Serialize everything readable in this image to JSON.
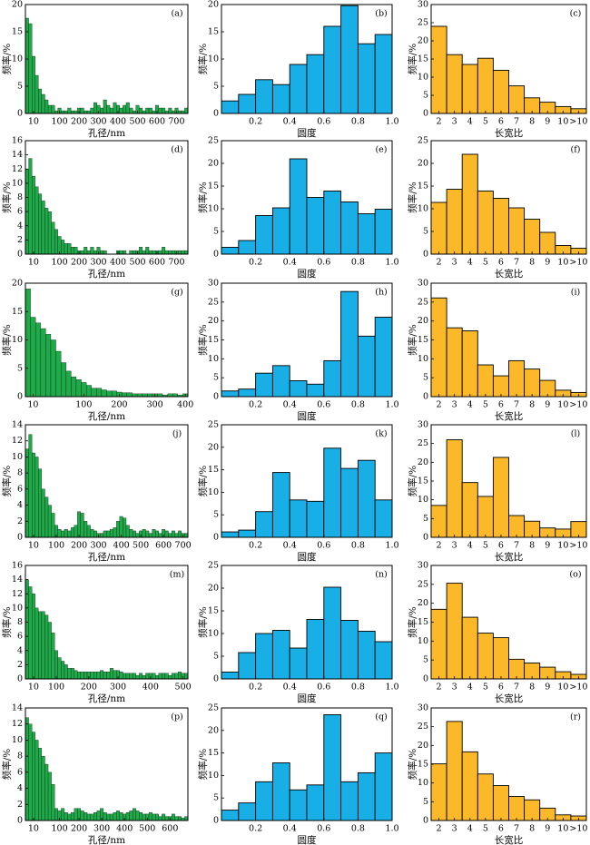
{
  "chart_data": [
    {
      "type": "bar",
      "label": "(a)",
      "xlabel": "孔径/nm",
      "ylabel": "频率/%",
      "color": "#1faa4a",
      "categories": [
        null,
        null,
        "10",
        null,
        null,
        null,
        null,
        null,
        null,
        null,
        "100",
        null,
        null,
        null,
        null,
        null,
        "200",
        null,
        null,
        null,
        null,
        null,
        "300",
        null,
        null,
        null,
        null,
        null,
        "400",
        null,
        null,
        null,
        null,
        null,
        "500",
        null,
        null,
        null,
        null,
        null,
        "600",
        null,
        null,
        null,
        null,
        null,
        "700",
        null,
        null,
        null
      ],
      "values": [
        17.5,
        16.5,
        10.5,
        7,
        4.5,
        3.5,
        2.5,
        1.5,
        1.5,
        0.5,
        1,
        0.5,
        0.5,
        1,
        0.5,
        0.5,
        1,
        1,
        0.5,
        0.5,
        1,
        2,
        1.5,
        1,
        2.5,
        1.5,
        1,
        2,
        1.5,
        1,
        1.5,
        2,
        1,
        0.5,
        1.5,
        1,
        0.5,
        1,
        1,
        0.5,
        1.5,
        1,
        1,
        0.5,
        1,
        0.5,
        1,
        0.5,
        0.5,
        1
      ],
      "ylim": [
        0,
        20
      ],
      "yticks": [
        0,
        5,
        10,
        15,
        20
      ]
    },
    {
      "type": "histogram",
      "label": "(b)",
      "xlabel": "圆度",
      "ylabel": "频率/%",
      "color": "#18afe6",
      "bins": [
        0,
        0.1,
        0.2,
        0.3,
        0.4,
        0.5,
        0.6,
        0.7,
        0.8,
        0.9,
        1
      ],
      "values": [
        2.3,
        3.5,
        6.2,
        5.3,
        9,
        10.8,
        16,
        19.8,
        12.8,
        14.5
      ],
      "xlim": [
        0,
        1
      ],
      "xticks": [
        0.2,
        0.4,
        0.6,
        0.8,
        {
          "value": 1,
          "label": "1.0"
        }
      ],
      "ylim": [
        0,
        20
      ],
      "yticks": [
        0,
        5,
        10,
        15,
        20
      ]
    },
    {
      "type": "bar",
      "label": "(c)",
      "xlabel": "长宽比",
      "ylabel": "频率/%",
      "color": "#fbb829",
      "categories": [
        "2",
        "3",
        "4",
        "5",
        "6",
        "7",
        "8",
        "9",
        "10",
        ">10"
      ],
      "values": [
        24,
        16.2,
        13.5,
        15.2,
        11.9,
        7.6,
        4.3,
        3.1,
        1.9,
        1.3
      ],
      "ylim": [
        0,
        30
      ],
      "yticks": [
        0,
        5,
        10,
        15,
        20,
        25,
        30
      ]
    },
    {
      "type": "bar",
      "label": "(d)",
      "xlabel": "孔径/nm",
      "ylabel": "频率/%",
      "color": "#1faa4a",
      "categories": [
        null,
        null,
        "10",
        null,
        null,
        null,
        null,
        null,
        null,
        null,
        "100",
        null,
        null,
        null,
        null,
        null,
        "200",
        null,
        null,
        null,
        null,
        null,
        "300",
        null,
        null,
        null,
        null,
        null,
        "400",
        null,
        null,
        null,
        null,
        null,
        "500",
        null,
        null,
        null,
        null,
        null,
        "600",
        null,
        null,
        null,
        null,
        null,
        "700",
        null,
        null,
        null
      ],
      "values": [
        12,
        13.5,
        11,
        9.5,
        8.5,
        7.5,
        6.5,
        6,
        4.5,
        3.5,
        2.5,
        2,
        1.5,
        1.5,
        1,
        1,
        0.5,
        0.5,
        1,
        0.5,
        1,
        0.5,
        1,
        0.5,
        0.5,
        0,
        0,
        0,
        0.5,
        0.5,
        0.5,
        0,
        0.5,
        0.5,
        0.5,
        1,
        0.5,
        1,
        0.5,
        0.5,
        0.5,
        0.5,
        1,
        0.5,
        0.5,
        0.5,
        0.5,
        0.5,
        0.5,
        0.5
      ],
      "ylim": [
        0,
        16
      ],
      "yticks": [
        0,
        2,
        4,
        6,
        8,
        10,
        12,
        14,
        16
      ]
    },
    {
      "type": "histogram",
      "label": "(e)",
      "xlabel": "圆度",
      "ylabel": "频率/%",
      "color": "#18afe6",
      "bins": [
        0,
        0.1,
        0.2,
        0.3,
        0.4,
        0.5,
        0.6,
        0.7,
        0.8,
        0.9,
        1
      ],
      "values": [
        1.5,
        3,
        8.5,
        10.2,
        21,
        12.5,
        13.9,
        11.5,
        8.9,
        9.9
      ],
      "xlim": [
        0,
        1
      ],
      "xticks": [
        0.2,
        0.4,
        0.6,
        0.8,
        {
          "value": 1,
          "label": "1.0"
        }
      ],
      "ylim": [
        0,
        25
      ],
      "yticks": [
        0,
        5,
        10,
        15,
        20,
        25
      ]
    },
    {
      "type": "bar",
      "label": "(f)",
      "xlabel": "长宽比",
      "ylabel": "频率/%",
      "color": "#fbb829",
      "categories": [
        "2",
        "3",
        "4",
        "5",
        "6",
        "7",
        "8",
        "9",
        "10",
        ">10"
      ],
      "values": [
        11.4,
        14.3,
        22,
        13.9,
        12.3,
        10.2,
        7.7,
        4.8,
        1.9,
        1.3
      ],
      "ylim": [
        0,
        25
      ],
      "yticks": [
        0,
        5,
        10,
        15,
        20,
        25
      ]
    },
    {
      "type": "bar",
      "label": "(g)",
      "xlabel": "孔径/nm",
      "ylabel": "频率/%",
      "color": "#1faa4a",
      "categories": [
        null,
        "10",
        null,
        null,
        null,
        null,
        null,
        null,
        null,
        null,
        null,
        "100",
        null,
        null,
        null,
        null,
        null,
        null,
        "200",
        null,
        null,
        null,
        null,
        null,
        null,
        "300",
        null,
        null,
        null,
        null,
        null,
        "400"
      ],
      "values": [
        19,
        14,
        13,
        12,
        11,
        10,
        8,
        6,
        4.5,
        3.5,
        3,
        2.5,
        2,
        1.5,
        1.5,
        1.2,
        1,
        1,
        0.8,
        0.7,
        0.7,
        0.5,
        0.5,
        0.5,
        0.5,
        0.5,
        0.5,
        0.3,
        0.5,
        0.5,
        0.3,
        0.5
      ],
      "ylim": [
        0,
        20
      ],
      "yticks": [
        0,
        5,
        10,
        15,
        20
      ]
    },
    {
      "type": "histogram",
      "label": "(h)",
      "xlabel": "圆度",
      "ylabel": "频率/%",
      "color": "#18afe6",
      "bins": [
        0,
        0.1,
        0.2,
        0.3,
        0.4,
        0.5,
        0.6,
        0.7,
        0.8,
        0.9,
        1
      ],
      "values": [
        1.5,
        2,
        6.2,
        8.2,
        4.2,
        3.3,
        9.5,
        27.8,
        16,
        21
      ],
      "xlim": [
        0,
        1
      ],
      "xticks": [
        0.2,
        0.4,
        0.6,
        0.8,
        {
          "value": 1,
          "label": "1.0"
        }
      ],
      "ylim": [
        0,
        30
      ],
      "yticks": [
        0,
        5,
        10,
        15,
        20,
        25,
        30
      ]
    },
    {
      "type": "bar",
      "label": "(i)",
      "xlabel": "长宽比",
      "ylabel": "频率/%",
      "color": "#fbb829",
      "categories": [
        "2",
        "3",
        "4",
        "5",
        "6",
        "7",
        "8",
        "9",
        "10",
        ">10"
      ],
      "values": [
        26.1,
        18.2,
        17.4,
        8.4,
        5.5,
        9.5,
        7.3,
        4.3,
        1.7,
        1.1
      ],
      "ylim": [
        0,
        30
      ],
      "yticks": [
        0,
        5,
        10,
        15,
        20,
        25,
        30
      ]
    },
    {
      "type": "bar",
      "label": "(j)",
      "xlabel": "孔径/nm",
      "ylabel": "频率/%",
      "color": "#1faa4a",
      "categories": [
        null,
        null,
        "10",
        null,
        null,
        null,
        null,
        null,
        null,
        "100",
        null,
        null,
        null,
        null,
        null,
        null,
        "200",
        null,
        null,
        null,
        null,
        null,
        "300",
        null,
        null,
        null,
        null,
        null,
        null,
        "400",
        null,
        null,
        null,
        null,
        null,
        "500",
        null,
        null,
        null,
        null,
        null,
        null,
        "600",
        null,
        null,
        null,
        null,
        null,
        "700",
        null
      ],
      "values": [
        11,
        12.8,
        10.5,
        10,
        8.5,
        6,
        5,
        4,
        3,
        1.5,
        1,
        0.8,
        1,
        0.8,
        1.2,
        1.5,
        3.2,
        3,
        2,
        1.5,
        1,
        0.8,
        0.5,
        0.5,
        0.8,
        0.8,
        1,
        1.2,
        2,
        2.6,
        2.4,
        1.5,
        1,
        0.8,
        0.5,
        0.8,
        1,
        0.8,
        0.5,
        1,
        0.8,
        0.5,
        1,
        0.8,
        0.5,
        0.8,
        0.5,
        0.8,
        0.5,
        0.5
      ],
      "ylim": [
        0,
        14
      ],
      "yticks": [
        0,
        2,
        4,
        6,
        8,
        10,
        12,
        14
      ]
    },
    {
      "type": "histogram",
      "label": "(k)",
      "xlabel": "圆度",
      "ylabel": "频率/%",
      "color": "#18afe6",
      "bins": [
        0,
        0.1,
        0.2,
        0.3,
        0.4,
        0.5,
        0.6,
        0.7,
        0.8,
        0.9,
        1
      ],
      "values": [
        1.2,
        1.6,
        5.7,
        14.4,
        8.3,
        8,
        19.8,
        15.3,
        17.1,
        8.3
      ],
      "xlim": [
        0,
        1
      ],
      "xticks": [
        0.2,
        0.4,
        0.6,
        0.8,
        {
          "value": 1,
          "label": "1.0"
        }
      ],
      "ylim": [
        0,
        25
      ],
      "yticks": [
        0,
        5,
        10,
        15,
        20,
        25
      ]
    },
    {
      "type": "bar",
      "label": "(l)",
      "xlabel": "长宽比",
      "ylabel": "频率/%",
      "color": "#fbb829",
      "categories": [
        "2",
        "3",
        "4",
        "5",
        "6",
        "7",
        "8",
        "9",
        "10",
        ">10"
      ],
      "values": [
        8.5,
        26,
        14.6,
        10.9,
        21.3,
        5.8,
        4.3,
        2.5,
        2.2,
        4.2
      ],
      "ylim": [
        0,
        30
      ],
      "yticks": [
        0,
        5,
        10,
        15,
        20,
        25,
        30
      ]
    },
    {
      "type": "bar",
      "label": "(m)",
      "xlabel": "孔径/nm",
      "ylabel": "频率/%",
      "color": "#1faa4a",
      "categories": [
        null,
        null,
        "10",
        null,
        null,
        null,
        null,
        null,
        null,
        "100",
        null,
        null,
        null,
        null,
        null,
        null,
        null,
        null,
        null,
        "200",
        null,
        null,
        null,
        null,
        null,
        null,
        null,
        null,
        "300",
        null,
        null,
        null,
        null,
        null,
        null,
        null,
        null,
        null,
        "400",
        null,
        null,
        null,
        null,
        null,
        null,
        null,
        null,
        null,
        "500",
        null
      ],
      "values": [
        14,
        13,
        12,
        10,
        9.5,
        9.5,
        9,
        8,
        6.5,
        4,
        3,
        2.5,
        2,
        1.5,
        1.5,
        1.2,
        1,
        1,
        1,
        1,
        1,
        1,
        1,
        1.2,
        1,
        1,
        1.5,
        1.2,
        1.2,
        1,
        0.8,
        0.8,
        0.8,
        0.8,
        0.5,
        0.8,
        0.5,
        0.8,
        0.8,
        0.8,
        0.5,
        0.8,
        0.8,
        0.8,
        0.5,
        0.8,
        0.8,
        1,
        0.8,
        0.8
      ],
      "ylim": [
        0,
        16
      ],
      "yticks": [
        0,
        2,
        4,
        6,
        8,
        10,
        12,
        14,
        16
      ]
    },
    {
      "type": "histogram",
      "label": "(n)",
      "xlabel": "圆度",
      "ylabel": "频率/%",
      "color": "#18afe6",
      "bins": [
        0,
        0.1,
        0.2,
        0.3,
        0.4,
        0.5,
        0.6,
        0.7,
        0.8,
        0.9,
        1
      ],
      "values": [
        1.5,
        5.8,
        10,
        10.7,
        6.8,
        13.1,
        20.2,
        12.9,
        10.5,
        8.2
      ],
      "xlim": [
        0,
        1
      ],
      "xticks": [
        0.2,
        0.4,
        0.6,
        0.8,
        {
          "value": 1,
          "label": "1.0"
        }
      ],
      "ylim": [
        0,
        25
      ],
      "yticks": [
        0,
        5,
        10,
        15,
        20,
        25
      ]
    },
    {
      "type": "bar",
      "label": "(o)",
      "xlabel": "长宽比",
      "ylabel": "频率/%",
      "color": "#fbb829",
      "categories": [
        "2",
        "3",
        "4",
        "5",
        "6",
        "7",
        "8",
        "9",
        "10",
        ">10"
      ],
      "values": [
        18.4,
        25.3,
        16.3,
        12.1,
        10.9,
        5.2,
        4.2,
        3.1,
        1.9,
        1.2
      ],
      "ylim": [
        0,
        30
      ],
      "yticks": [
        0,
        5,
        10,
        15,
        20,
        25,
        30
      ]
    },
    {
      "type": "bar",
      "label": "(p)",
      "xlabel": "孔径/nm",
      "ylabel": "频率/%",
      "color": "#1faa4a",
      "categories": [
        null,
        null,
        "10",
        null,
        null,
        null,
        null,
        null,
        null,
        null,
        "100",
        null,
        null,
        null,
        null,
        null,
        "200",
        null,
        null,
        null,
        null,
        null,
        null,
        "300",
        null,
        null,
        null,
        null,
        null,
        null,
        "400",
        null,
        null,
        null,
        null,
        null,
        null,
        "500",
        null,
        null,
        null,
        null,
        null,
        null,
        "600",
        null,
        null,
        null,
        null,
        null
      ],
      "values": [
        12.8,
        12,
        11,
        10,
        9,
        8,
        7,
        6,
        4.5,
        1.5,
        1.2,
        1.5,
        1,
        0.8,
        1,
        1.5,
        1.5,
        1.2,
        1,
        0.8,
        0.8,
        1,
        1.2,
        1.5,
        1,
        0.8,
        0.8,
        1,
        1.2,
        1,
        0.8,
        1,
        1.2,
        1.5,
        1.2,
        1,
        0.8,
        0.8,
        1,
        0.8,
        0.8,
        0.5,
        0.8,
        0.5,
        0.5,
        0.8,
        0.5,
        0.5,
        0.3,
        0.5
      ],
      "ylim": [
        0,
        14
      ],
      "yticks": [
        0,
        2,
        4,
        6,
        8,
        10,
        12,
        14
      ]
    },
    {
      "type": "histogram",
      "label": "(q)",
      "xlabel": "圆度",
      "ylabel": "频率/%",
      "color": "#18afe6",
      "bins": [
        0,
        0.1,
        0.2,
        0.3,
        0.4,
        0.5,
        0.6,
        0.7,
        0.8,
        0.9,
        1
      ],
      "values": [
        2.3,
        3.9,
        8.6,
        12.8,
        6.8,
        7.9,
        23.5,
        8.6,
        10.6,
        15
      ],
      "xlim": [
        0,
        1
      ],
      "xticks": [
        0.2,
        0.4,
        0.6,
        0.8,
        {
          "value": 1,
          "label": "1.0"
        }
      ],
      "ylim": [
        0,
        25
      ],
      "yticks": [
        0,
        5,
        10,
        15,
        20,
        25
      ]
    },
    {
      "type": "bar",
      "label": "(r)",
      "xlabel": "长宽比",
      "ylabel": "频率/%",
      "color": "#fbb829",
      "categories": [
        "2",
        "3",
        "4",
        "5",
        "6",
        "7",
        "8",
        "9",
        "10",
        ">10"
      ],
      "values": [
        15.1,
        26.4,
        18.3,
        12.4,
        9.3,
        6.4,
        5.5,
        3.3,
        1.5,
        1.2
      ],
      "ylim": [
        0,
        30
      ],
      "yticks": [
        0,
        5,
        10,
        15,
        20,
        25,
        30
      ]
    }
  ]
}
